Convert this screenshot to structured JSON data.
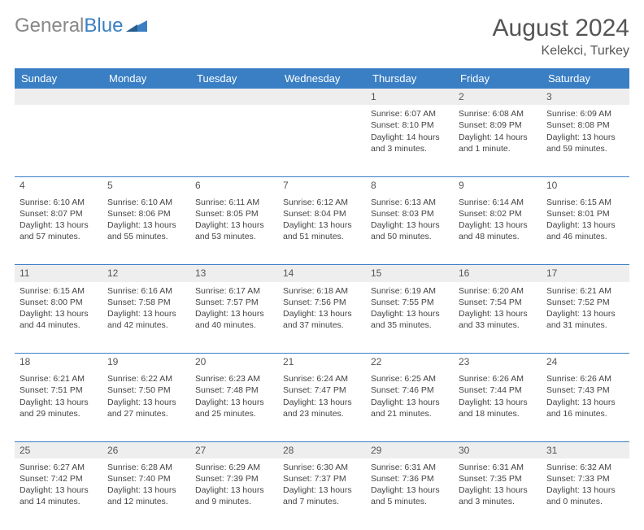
{
  "header": {
    "logo_general": "General",
    "logo_blue": "Blue",
    "title": "August 2024",
    "location": "Kelekci, Turkey"
  },
  "styling": {
    "accent_color": "#3a7fc4",
    "header_text_color": "#ffffff",
    "daynum_bg_odd": "#eeeeee",
    "daynum_bg_even": "#ffffff",
    "border_color": "#3a7fc4",
    "body_font": "Arial",
    "title_fontsize": 30,
    "header_fontsize": 13,
    "cell_fontsize": 10.5
  },
  "weekdays": [
    "Sunday",
    "Monday",
    "Tuesday",
    "Wednesday",
    "Thursday",
    "Friday",
    "Saturday"
  ],
  "weeks": [
    [
      null,
      null,
      null,
      null,
      {
        "n": "1",
        "sunrise": "Sunrise: 6:07 AM",
        "sunset": "Sunset: 8:10 PM",
        "day": "Daylight: 14 hours and 3 minutes."
      },
      {
        "n": "2",
        "sunrise": "Sunrise: 6:08 AM",
        "sunset": "Sunset: 8:09 PM",
        "day": "Daylight: 14 hours and 1 minute."
      },
      {
        "n": "3",
        "sunrise": "Sunrise: 6:09 AM",
        "sunset": "Sunset: 8:08 PM",
        "day": "Daylight: 13 hours and 59 minutes."
      }
    ],
    [
      {
        "n": "4",
        "sunrise": "Sunrise: 6:10 AM",
        "sunset": "Sunset: 8:07 PM",
        "day": "Daylight: 13 hours and 57 minutes."
      },
      {
        "n": "5",
        "sunrise": "Sunrise: 6:10 AM",
        "sunset": "Sunset: 8:06 PM",
        "day": "Daylight: 13 hours and 55 minutes."
      },
      {
        "n": "6",
        "sunrise": "Sunrise: 6:11 AM",
        "sunset": "Sunset: 8:05 PM",
        "day": "Daylight: 13 hours and 53 minutes."
      },
      {
        "n": "7",
        "sunrise": "Sunrise: 6:12 AM",
        "sunset": "Sunset: 8:04 PM",
        "day": "Daylight: 13 hours and 51 minutes."
      },
      {
        "n": "8",
        "sunrise": "Sunrise: 6:13 AM",
        "sunset": "Sunset: 8:03 PM",
        "day": "Daylight: 13 hours and 50 minutes."
      },
      {
        "n": "9",
        "sunrise": "Sunrise: 6:14 AM",
        "sunset": "Sunset: 8:02 PM",
        "day": "Daylight: 13 hours and 48 minutes."
      },
      {
        "n": "10",
        "sunrise": "Sunrise: 6:15 AM",
        "sunset": "Sunset: 8:01 PM",
        "day": "Daylight: 13 hours and 46 minutes."
      }
    ],
    [
      {
        "n": "11",
        "sunrise": "Sunrise: 6:15 AM",
        "sunset": "Sunset: 8:00 PM",
        "day": "Daylight: 13 hours and 44 minutes."
      },
      {
        "n": "12",
        "sunrise": "Sunrise: 6:16 AM",
        "sunset": "Sunset: 7:58 PM",
        "day": "Daylight: 13 hours and 42 minutes."
      },
      {
        "n": "13",
        "sunrise": "Sunrise: 6:17 AM",
        "sunset": "Sunset: 7:57 PM",
        "day": "Daylight: 13 hours and 40 minutes."
      },
      {
        "n": "14",
        "sunrise": "Sunrise: 6:18 AM",
        "sunset": "Sunset: 7:56 PM",
        "day": "Daylight: 13 hours and 37 minutes."
      },
      {
        "n": "15",
        "sunrise": "Sunrise: 6:19 AM",
        "sunset": "Sunset: 7:55 PM",
        "day": "Daylight: 13 hours and 35 minutes."
      },
      {
        "n": "16",
        "sunrise": "Sunrise: 6:20 AM",
        "sunset": "Sunset: 7:54 PM",
        "day": "Daylight: 13 hours and 33 minutes."
      },
      {
        "n": "17",
        "sunrise": "Sunrise: 6:21 AM",
        "sunset": "Sunset: 7:52 PM",
        "day": "Daylight: 13 hours and 31 minutes."
      }
    ],
    [
      {
        "n": "18",
        "sunrise": "Sunrise: 6:21 AM",
        "sunset": "Sunset: 7:51 PM",
        "day": "Daylight: 13 hours and 29 minutes."
      },
      {
        "n": "19",
        "sunrise": "Sunrise: 6:22 AM",
        "sunset": "Sunset: 7:50 PM",
        "day": "Daylight: 13 hours and 27 minutes."
      },
      {
        "n": "20",
        "sunrise": "Sunrise: 6:23 AM",
        "sunset": "Sunset: 7:48 PM",
        "day": "Daylight: 13 hours and 25 minutes."
      },
      {
        "n": "21",
        "sunrise": "Sunrise: 6:24 AM",
        "sunset": "Sunset: 7:47 PM",
        "day": "Daylight: 13 hours and 23 minutes."
      },
      {
        "n": "22",
        "sunrise": "Sunrise: 6:25 AM",
        "sunset": "Sunset: 7:46 PM",
        "day": "Daylight: 13 hours and 21 minutes."
      },
      {
        "n": "23",
        "sunrise": "Sunrise: 6:26 AM",
        "sunset": "Sunset: 7:44 PM",
        "day": "Daylight: 13 hours and 18 minutes."
      },
      {
        "n": "24",
        "sunrise": "Sunrise: 6:26 AM",
        "sunset": "Sunset: 7:43 PM",
        "day": "Daylight: 13 hours and 16 minutes."
      }
    ],
    [
      {
        "n": "25",
        "sunrise": "Sunrise: 6:27 AM",
        "sunset": "Sunset: 7:42 PM",
        "day": "Daylight: 13 hours and 14 minutes."
      },
      {
        "n": "26",
        "sunrise": "Sunrise: 6:28 AM",
        "sunset": "Sunset: 7:40 PM",
        "day": "Daylight: 13 hours and 12 minutes."
      },
      {
        "n": "27",
        "sunrise": "Sunrise: 6:29 AM",
        "sunset": "Sunset: 7:39 PM",
        "day": "Daylight: 13 hours and 9 minutes."
      },
      {
        "n": "28",
        "sunrise": "Sunrise: 6:30 AM",
        "sunset": "Sunset: 7:37 PM",
        "day": "Daylight: 13 hours and 7 minutes."
      },
      {
        "n": "29",
        "sunrise": "Sunrise: 6:31 AM",
        "sunset": "Sunset: 7:36 PM",
        "day": "Daylight: 13 hours and 5 minutes."
      },
      {
        "n": "30",
        "sunrise": "Sunrise: 6:31 AM",
        "sunset": "Sunset: 7:35 PM",
        "day": "Daylight: 13 hours and 3 minutes."
      },
      {
        "n": "31",
        "sunrise": "Sunrise: 6:32 AM",
        "sunset": "Sunset: 7:33 PM",
        "day": "Daylight: 13 hours and 0 minutes."
      }
    ]
  ]
}
